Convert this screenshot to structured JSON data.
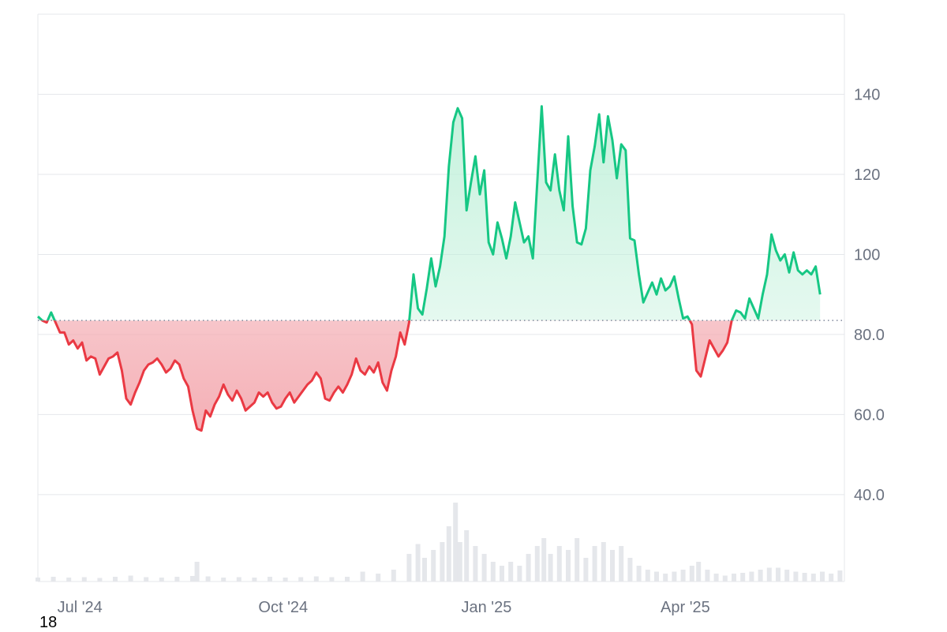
{
  "corner_text": "18",
  "colors": {
    "up_line": "#16c784",
    "down_line": "#ea3943",
    "up_fill_top": "#bff0d9",
    "down_fill_bottom": "#f3a6ad",
    "volume": "#e5e7eb",
    "grid": "#e5e7eb",
    "baseline_dots": "#808a9d",
    "tick_text": "#6b7280"
  },
  "chart_data": {
    "type": "area",
    "baseline": 83.5,
    "ylim": [
      18.3,
      160
    ],
    "y_ticks": [
      {
        "value": 140,
        "label": "140"
      },
      {
        "value": 120,
        "label": "120"
      },
      {
        "value": 100,
        "label": "100"
      },
      {
        "value": 80,
        "label": "80.0"
      },
      {
        "value": 60,
        "label": "60.0"
      },
      {
        "value": 40,
        "label": "40.0"
      }
    ],
    "x_ticks": [
      {
        "x": "2024-07-01",
        "label": "Jul '24"
      },
      {
        "x": "2024-10-01",
        "label": "Oct '24"
      },
      {
        "x": "2025-01-01",
        "label": "Jan '25"
      },
      {
        "x": "2025-04-01",
        "label": "Apr '25"
      }
    ],
    "xlim": [
      "2024-06-12",
      "2025-06-12"
    ],
    "grid": true,
    "price_series": [
      [
        "2024-06-12",
        84.5
      ],
      [
        "2024-06-14",
        83.5
      ],
      [
        "2024-06-16",
        83.0
      ],
      [
        "2024-06-18",
        85.5
      ],
      [
        "2024-06-20",
        83.0
      ],
      [
        "2024-06-22",
        80.5
      ],
      [
        "2024-06-24",
        80.5
      ],
      [
        "2024-06-26",
        77.5
      ],
      [
        "2024-06-28",
        78.5
      ],
      [
        "2024-06-30",
        76.5
      ],
      [
        "2024-07-02",
        78.0
      ],
      [
        "2024-07-04",
        73.5
      ],
      [
        "2024-07-06",
        74.5
      ],
      [
        "2024-07-08",
        74.0
      ],
      [
        "2024-07-10",
        70.0
      ],
      [
        "2024-07-12",
        72.0
      ],
      [
        "2024-07-14",
        74.0
      ],
      [
        "2024-07-16",
        74.5
      ],
      [
        "2024-07-18",
        75.5
      ],
      [
        "2024-07-20",
        71.0
      ],
      [
        "2024-07-22",
        64.0
      ],
      [
        "2024-07-24",
        62.5
      ],
      [
        "2024-07-26",
        65.5
      ],
      [
        "2024-07-28",
        68.0
      ],
      [
        "2024-07-30",
        71.0
      ],
      [
        "2024-08-01",
        72.5
      ],
      [
        "2024-08-03",
        73.0
      ],
      [
        "2024-08-05",
        74.0
      ],
      [
        "2024-08-07",
        72.5
      ],
      [
        "2024-08-09",
        70.5
      ],
      [
        "2024-08-11",
        71.5
      ],
      [
        "2024-08-13",
        73.5
      ],
      [
        "2024-08-15",
        72.5
      ],
      [
        "2024-08-17",
        69.0
      ],
      [
        "2024-08-19",
        67.0
      ],
      [
        "2024-08-21",
        61.0
      ],
      [
        "2024-08-23",
        56.5
      ],
      [
        "2024-08-25",
        56.0
      ],
      [
        "2024-08-27",
        61.0
      ],
      [
        "2024-08-29",
        59.5
      ],
      [
        "2024-08-31",
        62.5
      ],
      [
        "2024-09-02",
        64.5
      ],
      [
        "2024-09-04",
        67.5
      ],
      [
        "2024-09-06",
        65.0
      ],
      [
        "2024-09-08",
        63.5
      ],
      [
        "2024-09-10",
        66.0
      ],
      [
        "2024-09-12",
        64.0
      ],
      [
        "2024-09-14",
        61.0
      ],
      [
        "2024-09-16",
        62.0
      ],
      [
        "2024-09-18",
        63.0
      ],
      [
        "2024-09-20",
        65.5
      ],
      [
        "2024-09-22",
        64.5
      ],
      [
        "2024-09-24",
        65.5
      ],
      [
        "2024-09-26",
        63.0
      ],
      [
        "2024-09-28",
        61.5
      ],
      [
        "2024-09-30",
        62.0
      ],
      [
        "2024-10-02",
        64.0
      ],
      [
        "2024-10-04",
        65.5
      ],
      [
        "2024-10-06",
        63.0
      ],
      [
        "2024-10-08",
        64.5
      ],
      [
        "2024-10-10",
        66.0
      ],
      [
        "2024-10-12",
        67.5
      ],
      [
        "2024-10-14",
        68.5
      ],
      [
        "2024-10-16",
        70.5
      ],
      [
        "2024-10-18",
        69.0
      ],
      [
        "2024-10-20",
        64.0
      ],
      [
        "2024-10-22",
        63.5
      ],
      [
        "2024-10-24",
        65.5
      ],
      [
        "2024-10-26",
        67.0
      ],
      [
        "2024-10-28",
        65.5
      ],
      [
        "2024-10-30",
        67.5
      ],
      [
        "2024-11-01",
        70.0
      ],
      [
        "2024-11-03",
        74.0
      ],
      [
        "2024-11-05",
        71.0
      ],
      [
        "2024-11-07",
        70.0
      ],
      [
        "2024-11-09",
        72.0
      ],
      [
        "2024-11-11",
        70.5
      ],
      [
        "2024-11-13",
        73.0
      ],
      [
        "2024-11-15",
        68.0
      ],
      [
        "2024-11-17",
        66.0
      ],
      [
        "2024-11-19",
        71.0
      ],
      [
        "2024-11-21",
        74.5
      ],
      [
        "2024-11-23",
        80.5
      ],
      [
        "2024-11-25",
        77.5
      ],
      [
        "2024-11-27",
        83.0
      ],
      [
        "2024-11-29",
        95.0
      ],
      [
        "2024-12-01",
        86.5
      ],
      [
        "2024-12-03",
        85.0
      ],
      [
        "2024-12-05",
        91.5
      ],
      [
        "2024-12-07",
        99.0
      ],
      [
        "2024-12-09",
        92.0
      ],
      [
        "2024-12-11",
        97.0
      ],
      [
        "2024-12-13",
        104.5
      ],
      [
        "2024-12-15",
        122.0
      ],
      [
        "2024-12-17",
        133.0
      ],
      [
        "2024-12-19",
        136.5
      ],
      [
        "2024-12-21",
        134.0
      ],
      [
        "2024-12-23",
        111.0
      ],
      [
        "2024-12-25",
        118.0
      ],
      [
        "2024-12-27",
        124.5
      ],
      [
        "2024-12-29",
        115.0
      ],
      [
        "2024-12-31",
        121.0
      ],
      [
        "2025-01-02",
        103.0
      ],
      [
        "2025-01-04",
        100.0
      ],
      [
        "2025-01-06",
        108.0
      ],
      [
        "2025-01-08",
        104.0
      ],
      [
        "2025-01-10",
        99.0
      ],
      [
        "2025-01-12",
        104.5
      ],
      [
        "2025-01-14",
        113.0
      ],
      [
        "2025-01-16",
        108.0
      ],
      [
        "2025-01-18",
        103.0
      ],
      [
        "2025-01-20",
        104.5
      ],
      [
        "2025-01-22",
        99.0
      ],
      [
        "2025-01-24",
        118.0
      ],
      [
        "2025-01-26",
        137.0
      ],
      [
        "2025-01-28",
        118.0
      ],
      [
        "2025-01-30",
        116.0
      ],
      [
        "2025-02-01",
        125.0
      ],
      [
        "2025-02-03",
        116.0
      ],
      [
        "2025-02-05",
        111.0
      ],
      [
        "2025-02-07",
        129.5
      ],
      [
        "2025-02-09",
        112.0
      ],
      [
        "2025-02-11",
        103.0
      ],
      [
        "2025-02-13",
        102.5
      ],
      [
        "2025-02-15",
        106.5
      ],
      [
        "2025-02-17",
        121.0
      ],
      [
        "2025-02-19",
        127.0
      ],
      [
        "2025-02-21",
        135.0
      ],
      [
        "2025-02-23",
        123.0
      ],
      [
        "2025-02-25",
        134.5
      ],
      [
        "2025-02-27",
        128.5
      ],
      [
        "2025-03-01",
        119.0
      ],
      [
        "2025-03-03",
        127.5
      ],
      [
        "2025-03-05",
        126.0
      ],
      [
        "2025-03-07",
        104.0
      ],
      [
        "2025-03-09",
        103.5
      ],
      [
        "2025-03-11",
        95.0
      ],
      [
        "2025-03-13",
        88.0
      ],
      [
        "2025-03-15",
        90.5
      ],
      [
        "2025-03-17",
        93.0
      ],
      [
        "2025-03-19",
        90.0
      ],
      [
        "2025-03-21",
        94.0
      ],
      [
        "2025-03-23",
        91.0
      ],
      [
        "2025-03-25",
        92.0
      ],
      [
        "2025-03-27",
        94.5
      ],
      [
        "2025-03-29",
        89.0
      ],
      [
        "2025-03-31",
        84.0
      ],
      [
        "2025-04-02",
        84.5
      ],
      [
        "2025-04-04",
        82.5
      ],
      [
        "2025-04-06",
        71.0
      ],
      [
        "2025-04-08",
        69.5
      ],
      [
        "2025-04-10",
        74.0
      ],
      [
        "2025-04-12",
        78.5
      ],
      [
        "2025-04-14",
        76.5
      ],
      [
        "2025-04-16",
        74.5
      ],
      [
        "2025-04-18",
        76.0
      ],
      [
        "2025-04-20",
        78.0
      ],
      [
        "2025-04-22",
        83.5
      ],
      [
        "2025-04-24",
        86.0
      ],
      [
        "2025-04-26",
        85.5
      ],
      [
        "2025-04-28",
        84.0
      ],
      [
        "2025-04-30",
        89.0
      ],
      [
        "2025-05-02",
        86.5
      ],
      [
        "2025-05-04",
        84.0
      ],
      [
        "2025-05-06",
        90.0
      ],
      [
        "2025-05-08",
        95.0
      ],
      [
        "2025-05-10",
        105.0
      ],
      [
        "2025-05-12",
        101.0
      ],
      [
        "2025-05-14",
        98.5
      ],
      [
        "2025-05-16",
        100.0
      ],
      [
        "2025-05-18",
        95.5
      ],
      [
        "2025-05-20",
        100.5
      ],
      [
        "2025-05-22",
        96.0
      ],
      [
        "2025-05-24",
        95.0
      ],
      [
        "2025-05-26",
        96.0
      ],
      [
        "2025-05-28",
        95.0
      ],
      [
        "2025-05-30",
        97.0
      ],
      [
        "2025-06-01",
        90.0
      ]
    ],
    "volume_series": [
      [
        "2024-06-12",
        1.0
      ],
      [
        "2024-06-19",
        1.2
      ],
      [
        "2024-06-26",
        1.0
      ],
      [
        "2024-07-03",
        1.1
      ],
      [
        "2024-07-10",
        0.9
      ],
      [
        "2024-07-17",
        1.2
      ],
      [
        "2024-07-24",
        1.5
      ],
      [
        "2024-07-31",
        1.1
      ],
      [
        "2024-08-07",
        1.0
      ],
      [
        "2024-08-14",
        1.2
      ],
      [
        "2024-08-21",
        1.4
      ],
      [
        "2024-08-23",
        5.0
      ],
      [
        "2024-08-28",
        1.3
      ],
      [
        "2024-09-04",
        1.0
      ],
      [
        "2024-09-11",
        1.1
      ],
      [
        "2024-09-18",
        1.0
      ],
      [
        "2024-09-25",
        1.2
      ],
      [
        "2024-10-02",
        1.0
      ],
      [
        "2024-10-09",
        1.1
      ],
      [
        "2024-10-16",
        1.3
      ],
      [
        "2024-10-23",
        1.1
      ],
      [
        "2024-10-30",
        1.2
      ],
      [
        "2024-11-06",
        2.5
      ],
      [
        "2024-11-13",
        2.0
      ],
      [
        "2024-11-20",
        3.0
      ],
      [
        "2024-11-27",
        7.0
      ],
      [
        "2024-12-01",
        9.5
      ],
      [
        "2024-12-04",
        6.0
      ],
      [
        "2024-12-08",
        8.0
      ],
      [
        "2024-12-12",
        10.0
      ],
      [
        "2024-12-15",
        14.0
      ],
      [
        "2024-12-18",
        20.0
      ],
      [
        "2024-12-20",
        10.0
      ],
      [
        "2024-12-23",
        13.0
      ],
      [
        "2024-12-27",
        9.0
      ],
      [
        "2024-12-31",
        7.0
      ],
      [
        "2025-01-04",
        5.0
      ],
      [
        "2025-01-08",
        4.0
      ],
      [
        "2025-01-12",
        5.0
      ],
      [
        "2025-01-16",
        4.0
      ],
      [
        "2025-01-20",
        7.0
      ],
      [
        "2025-01-24",
        9.0
      ],
      [
        "2025-01-27",
        11.0
      ],
      [
        "2025-01-30",
        7.0
      ],
      [
        "2025-02-03",
        9.0
      ],
      [
        "2025-02-07",
        8.0
      ],
      [
        "2025-02-11",
        11.0
      ],
      [
        "2025-02-15",
        6.0
      ],
      [
        "2025-02-19",
        9.0
      ],
      [
        "2025-02-23",
        10.0
      ],
      [
        "2025-02-27",
        8.0
      ],
      [
        "2025-03-03",
        9.0
      ],
      [
        "2025-03-07",
        6.0
      ],
      [
        "2025-03-11",
        4.0
      ],
      [
        "2025-03-15",
        3.0
      ],
      [
        "2025-03-19",
        2.5
      ],
      [
        "2025-03-23",
        2.0
      ],
      [
        "2025-03-27",
        2.5
      ],
      [
        "2025-03-31",
        3.0
      ],
      [
        "2025-04-04",
        4.0
      ],
      [
        "2025-04-07",
        5.0
      ],
      [
        "2025-04-11",
        3.0
      ],
      [
        "2025-04-15",
        2.0
      ],
      [
        "2025-04-19",
        1.5
      ],
      [
        "2025-04-23",
        2.0
      ],
      [
        "2025-04-27",
        2.2
      ],
      [
        "2025-05-01",
        2.5
      ],
      [
        "2025-05-05",
        3.0
      ],
      [
        "2025-05-09",
        3.5
      ],
      [
        "2025-05-13",
        3.5
      ],
      [
        "2025-05-17",
        3.0
      ],
      [
        "2025-05-21",
        2.5
      ],
      [
        "2025-05-25",
        2.2
      ],
      [
        "2025-05-29",
        2.0
      ],
      [
        "2025-06-02",
        2.5
      ],
      [
        "2025-06-06",
        2.0
      ],
      [
        "2025-06-10",
        2.8
      ]
    ],
    "volume_max": 20.0
  }
}
